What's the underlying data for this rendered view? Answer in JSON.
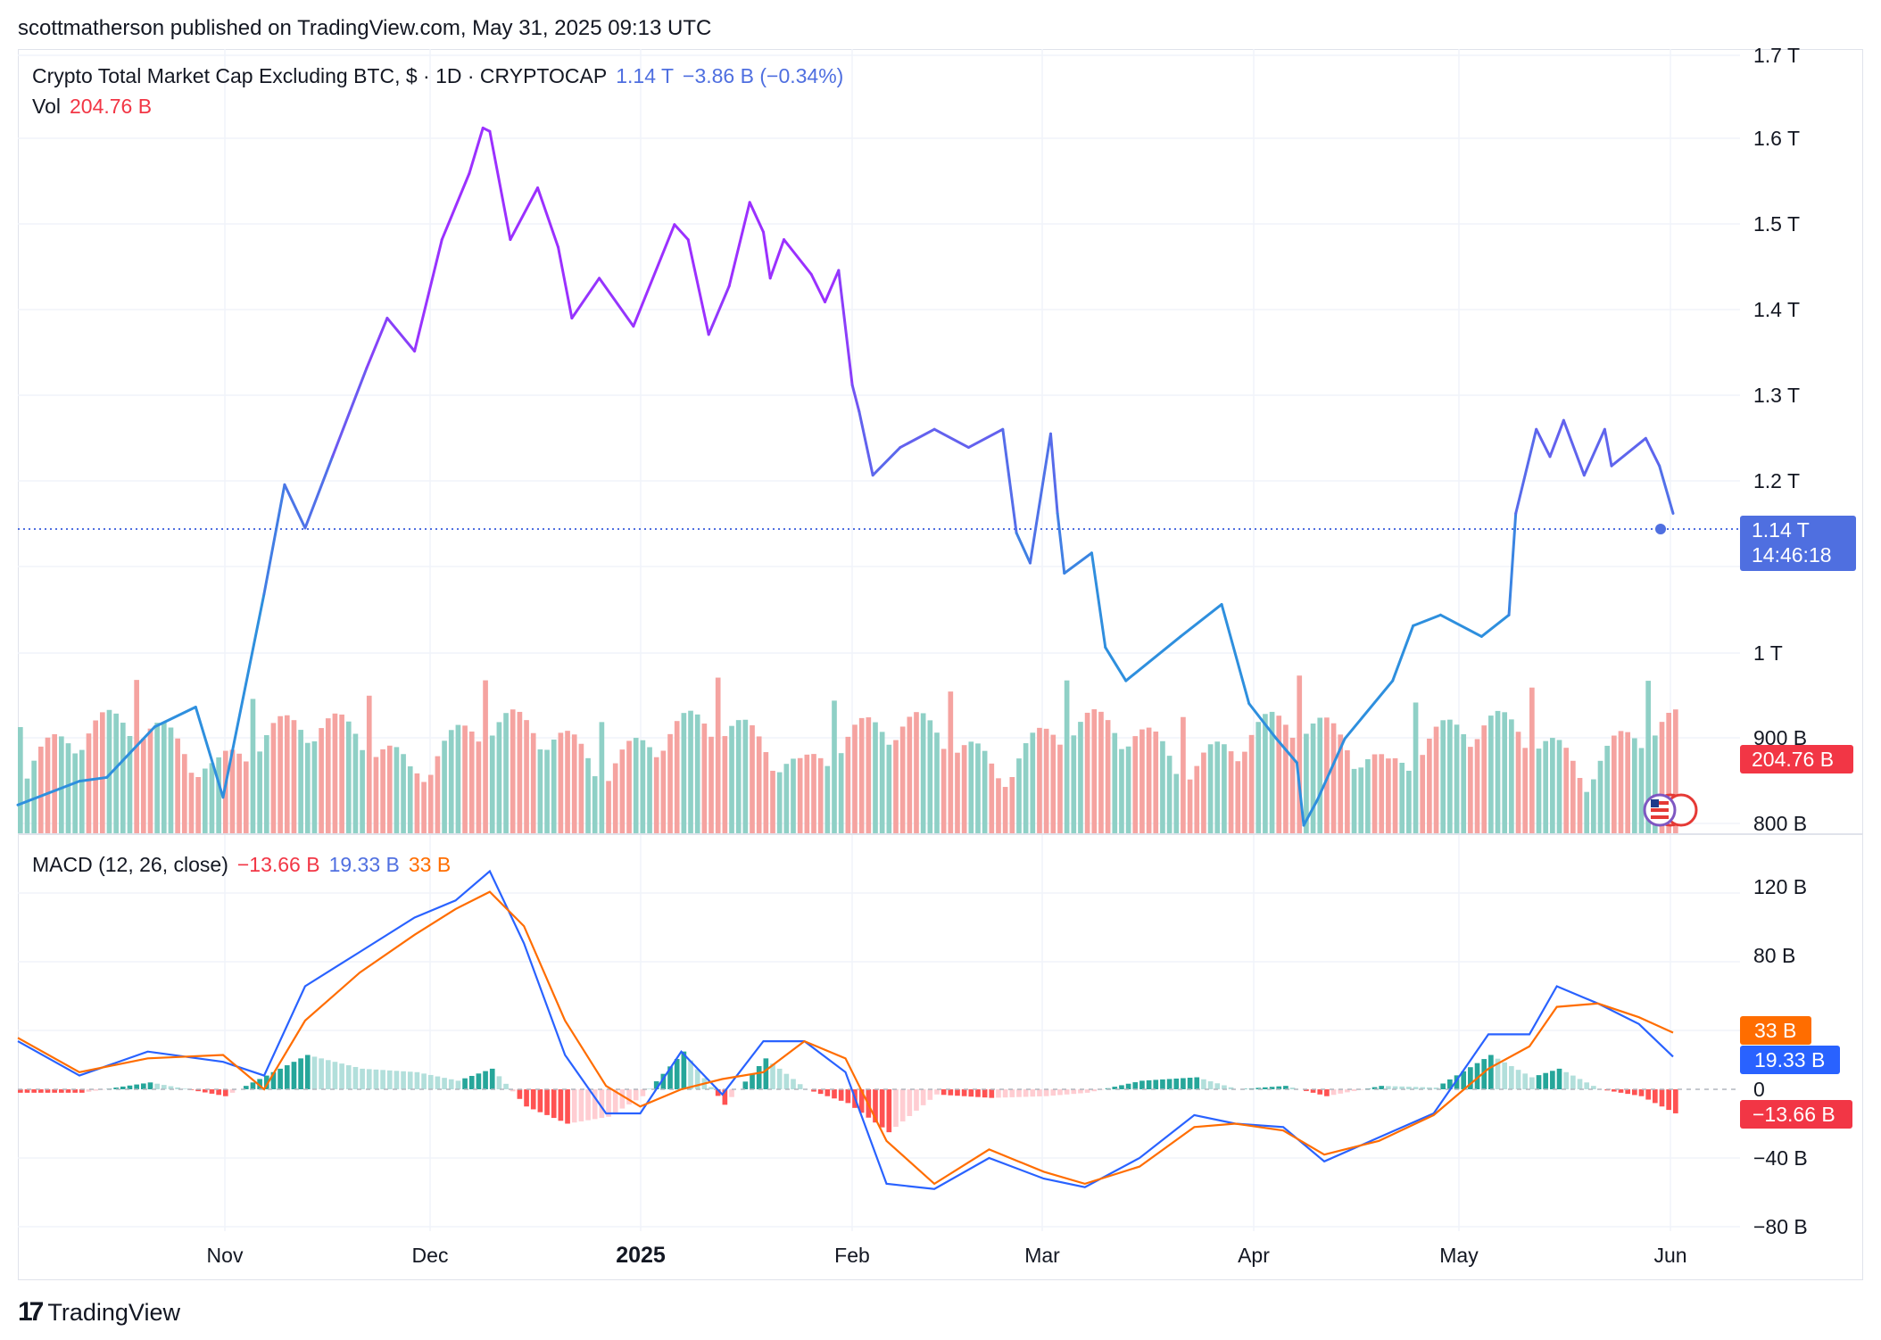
{
  "header": {
    "published_by": "scottmatherson published on TradingView.com, May 31, 2025 09:13 UTC"
  },
  "main_legend": {
    "title": "Crypto Total Market Cap Excluding BTC, $ · 1D · CRYPTOCAP",
    "last": "1.14 T",
    "change": "−3.86 B (−0.34%)"
  },
  "volume_legend": {
    "label": "Vol",
    "value": "204.76 B"
  },
  "macd_legend": {
    "label": "MACD (12, 26, close)",
    "histogram": "−13.66 B",
    "macd": "19.33 B",
    "signal": "33 B"
  },
  "price_axis": {
    "ticks": [
      "1.7 T",
      "1.6 T",
      "1.5 T",
      "1.4 T",
      "1.3 T",
      "1.2 T",
      "1 T",
      "900 B",
      "800 B"
    ],
    "last_price_label": "1.14 T",
    "countdown_label": "14:46:18",
    "volume_label": "204.76 B"
  },
  "macd_axis": {
    "ticks": [
      "120 B",
      "80 B",
      "0",
      "−40 B",
      "−80 B"
    ],
    "signal_label": "33 B",
    "macd_label": "19.33 B",
    "histogram_label": "−13.66 B"
  },
  "time_axis": {
    "labels": [
      "Nov",
      "Dec",
      "2025",
      "Feb",
      "Mar",
      "Apr",
      "May",
      "Jun"
    ]
  },
  "footer": {
    "brand": "TradingView",
    "logo": "tradingview-logo-icon"
  },
  "colors": {
    "up_volume": "#8fd0c6",
    "down_volume": "#f5a3a0",
    "price_blue": "#2e8fde",
    "price_purple": "#9b30ff",
    "macd_line": "#2962ff",
    "signal_line": "#ff6d00",
    "hist_up_strong": "#26a69a",
    "hist_up_weak": "#b2dfdb",
    "hist_down_strong": "#ff5252",
    "hist_down_weak": "#ffcdd2"
  },
  "chart_data": {
    "type": "line",
    "title": "Crypto Total Market Cap Excluding BTC, $ · 1D · CRYPTOCAP",
    "x_range": [
      "2024-10-01",
      "2025-05-31"
    ],
    "ylim": [
      780000000000,
      1720000000000
    ],
    "y_scale": "log",
    "price_series": {
      "name": "Crypto Total Market Cap Excluding BTC",
      "x": [
        "2024-10-01",
        "2024-10-10",
        "2024-10-14",
        "2024-10-21",
        "2024-10-27",
        "2024-10-31",
        "2024-11-06",
        "2024-11-09",
        "2024-11-12",
        "2024-11-16",
        "2024-11-21",
        "2024-11-24",
        "2024-11-28",
        "2024-12-02",
        "2024-12-06",
        "2024-12-08",
        "2024-12-09",
        "2024-12-12",
        "2024-12-16",
        "2024-12-19",
        "2024-12-21",
        "2024-12-25",
        "2024-12-30",
        "2025-01-05",
        "2025-01-07",
        "2025-01-10",
        "2025-01-13",
        "2025-01-16",
        "2025-01-18",
        "2025-01-19",
        "2025-01-21",
        "2025-01-25",
        "2025-01-27",
        "2025-01-29",
        "2025-01-31",
        "2025-02-01",
        "2025-02-03",
        "2025-02-07",
        "2025-02-12",
        "2025-02-17",
        "2025-02-22",
        "2025-02-24",
        "2025-02-26",
        "2025-03-01",
        "2025-03-02",
        "2025-03-03",
        "2025-03-07",
        "2025-03-09",
        "2025-03-12",
        "2025-03-20",
        "2025-03-26",
        "2025-03-30",
        "2025-04-03",
        "2025-04-06",
        "2025-04-07",
        "2025-04-09",
        "2025-04-13",
        "2025-04-20",
        "2025-04-23",
        "2025-04-27",
        "2025-05-03",
        "2025-05-07",
        "2025-05-08",
        "2025-05-11",
        "2025-05-13",
        "2025-05-15",
        "2025-05-18",
        "2025-05-21",
        "2025-05-22",
        "2025-05-27",
        "2025-05-29",
        "2025-05-31"
      ],
      "values": [
        876,
        895,
        898,
        940,
        957,
        882,
        1060,
        1170,
        1125,
        1200,
        1300,
        1360,
        1320,
        1460,
        1550,
        1615,
        1610,
        1460,
        1530,
        1450,
        1360,
        1410,
        1350,
        1480,
        1460,
        1340,
        1400,
        1510,
        1470,
        1410,
        1460,
        1415,
        1380,
        1420,
        1280,
        1250,
        1180,
        1210,
        1230,
        1210,
        1230,
        1120,
        1090,
        1225,
        1140,
        1080,
        1100,
        1010,
        980,
        1020,
        1050,
        960,
        930,
        910,
        860,
        880,
        930,
        980,
        1030,
        1040,
        1020,
        1040,
        1140,
        1230,
        1200,
        1240,
        1180,
        1230,
        1190,
        1220,
        1190,
        1140
      ]
    },
    "volume_series": {
      "name": "Vol",
      "last": 204760000000
    },
    "macd_series": {
      "ylim": [
        -80,
        140
      ],
      "unit": "B",
      "x": [
        "2024-10-01",
        "2024-10-10",
        "2024-10-20",
        "2024-10-31",
        "2024-11-06",
        "2024-11-12",
        "2024-11-20",
        "2024-11-28",
        "2024-12-04",
        "2024-12-09",
        "2024-12-14",
        "2024-12-20",
        "2024-12-26",
        "2024-12-31",
        "2025-01-06",
        "2025-01-12",
        "2025-01-18",
        "2025-01-24",
        "2025-01-30",
        "2025-02-05",
        "2025-02-12",
        "2025-02-20",
        "2025-02-28",
        "2025-03-06",
        "2025-03-14",
        "2025-03-22",
        "2025-03-28",
        "2025-04-04",
        "2025-04-10",
        "2025-04-18",
        "2025-04-26",
        "2025-05-04",
        "2025-05-10",
        "2025-05-14",
        "2025-05-20",
        "2025-05-26",
        "2025-05-31"
      ],
      "macd": [
        28,
        8,
        22,
        16,
        8,
        60,
        80,
        100,
        110,
        127,
        85,
        20,
        -14,
        -14,
        22,
        -3,
        28,
        28,
        10,
        -55,
        -58,
        -40,
        -52,
        -57,
        -40,
        -15,
        -20,
        -22,
        -42,
        -28,
        -14,
        32,
        32,
        60,
        50,
        38,
        19
      ],
      "signal": [
        30,
        10,
        18,
        20,
        0,
        40,
        68,
        90,
        105,
        115,
        95,
        40,
        2,
        -10,
        0,
        6,
        10,
        28,
        18,
        -30,
        -55,
        -35,
        -48,
        -55,
        -45,
        -22,
        -20,
        -24,
        -38,
        -30,
        -15,
        12,
        25,
        48,
        50,
        42,
        33
      ]
    }
  }
}
